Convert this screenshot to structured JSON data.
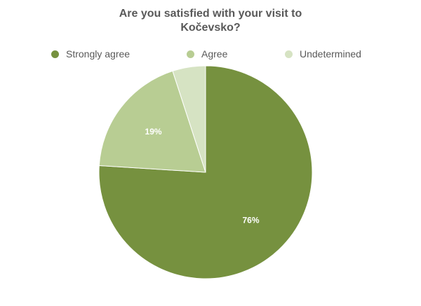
{
  "chart_data": {
    "type": "pie",
    "title_lines": [
      "Are you satisfied with your visit to",
      "Kočevsko?"
    ],
    "slices": [
      {
        "name": "Strongly agree",
        "value": 76,
        "label": "76%",
        "color": "#76913f"
      },
      {
        "name": "Agree",
        "value": 19,
        "label": "19%",
        "color": "#b8cd93"
      },
      {
        "name": "Undetermined",
        "value": 5,
        "label": "",
        "color": "#d6e3c3"
      }
    ],
    "legend_position": "top",
    "start_angle_deg": 0,
    "direction": "clockwise"
  }
}
